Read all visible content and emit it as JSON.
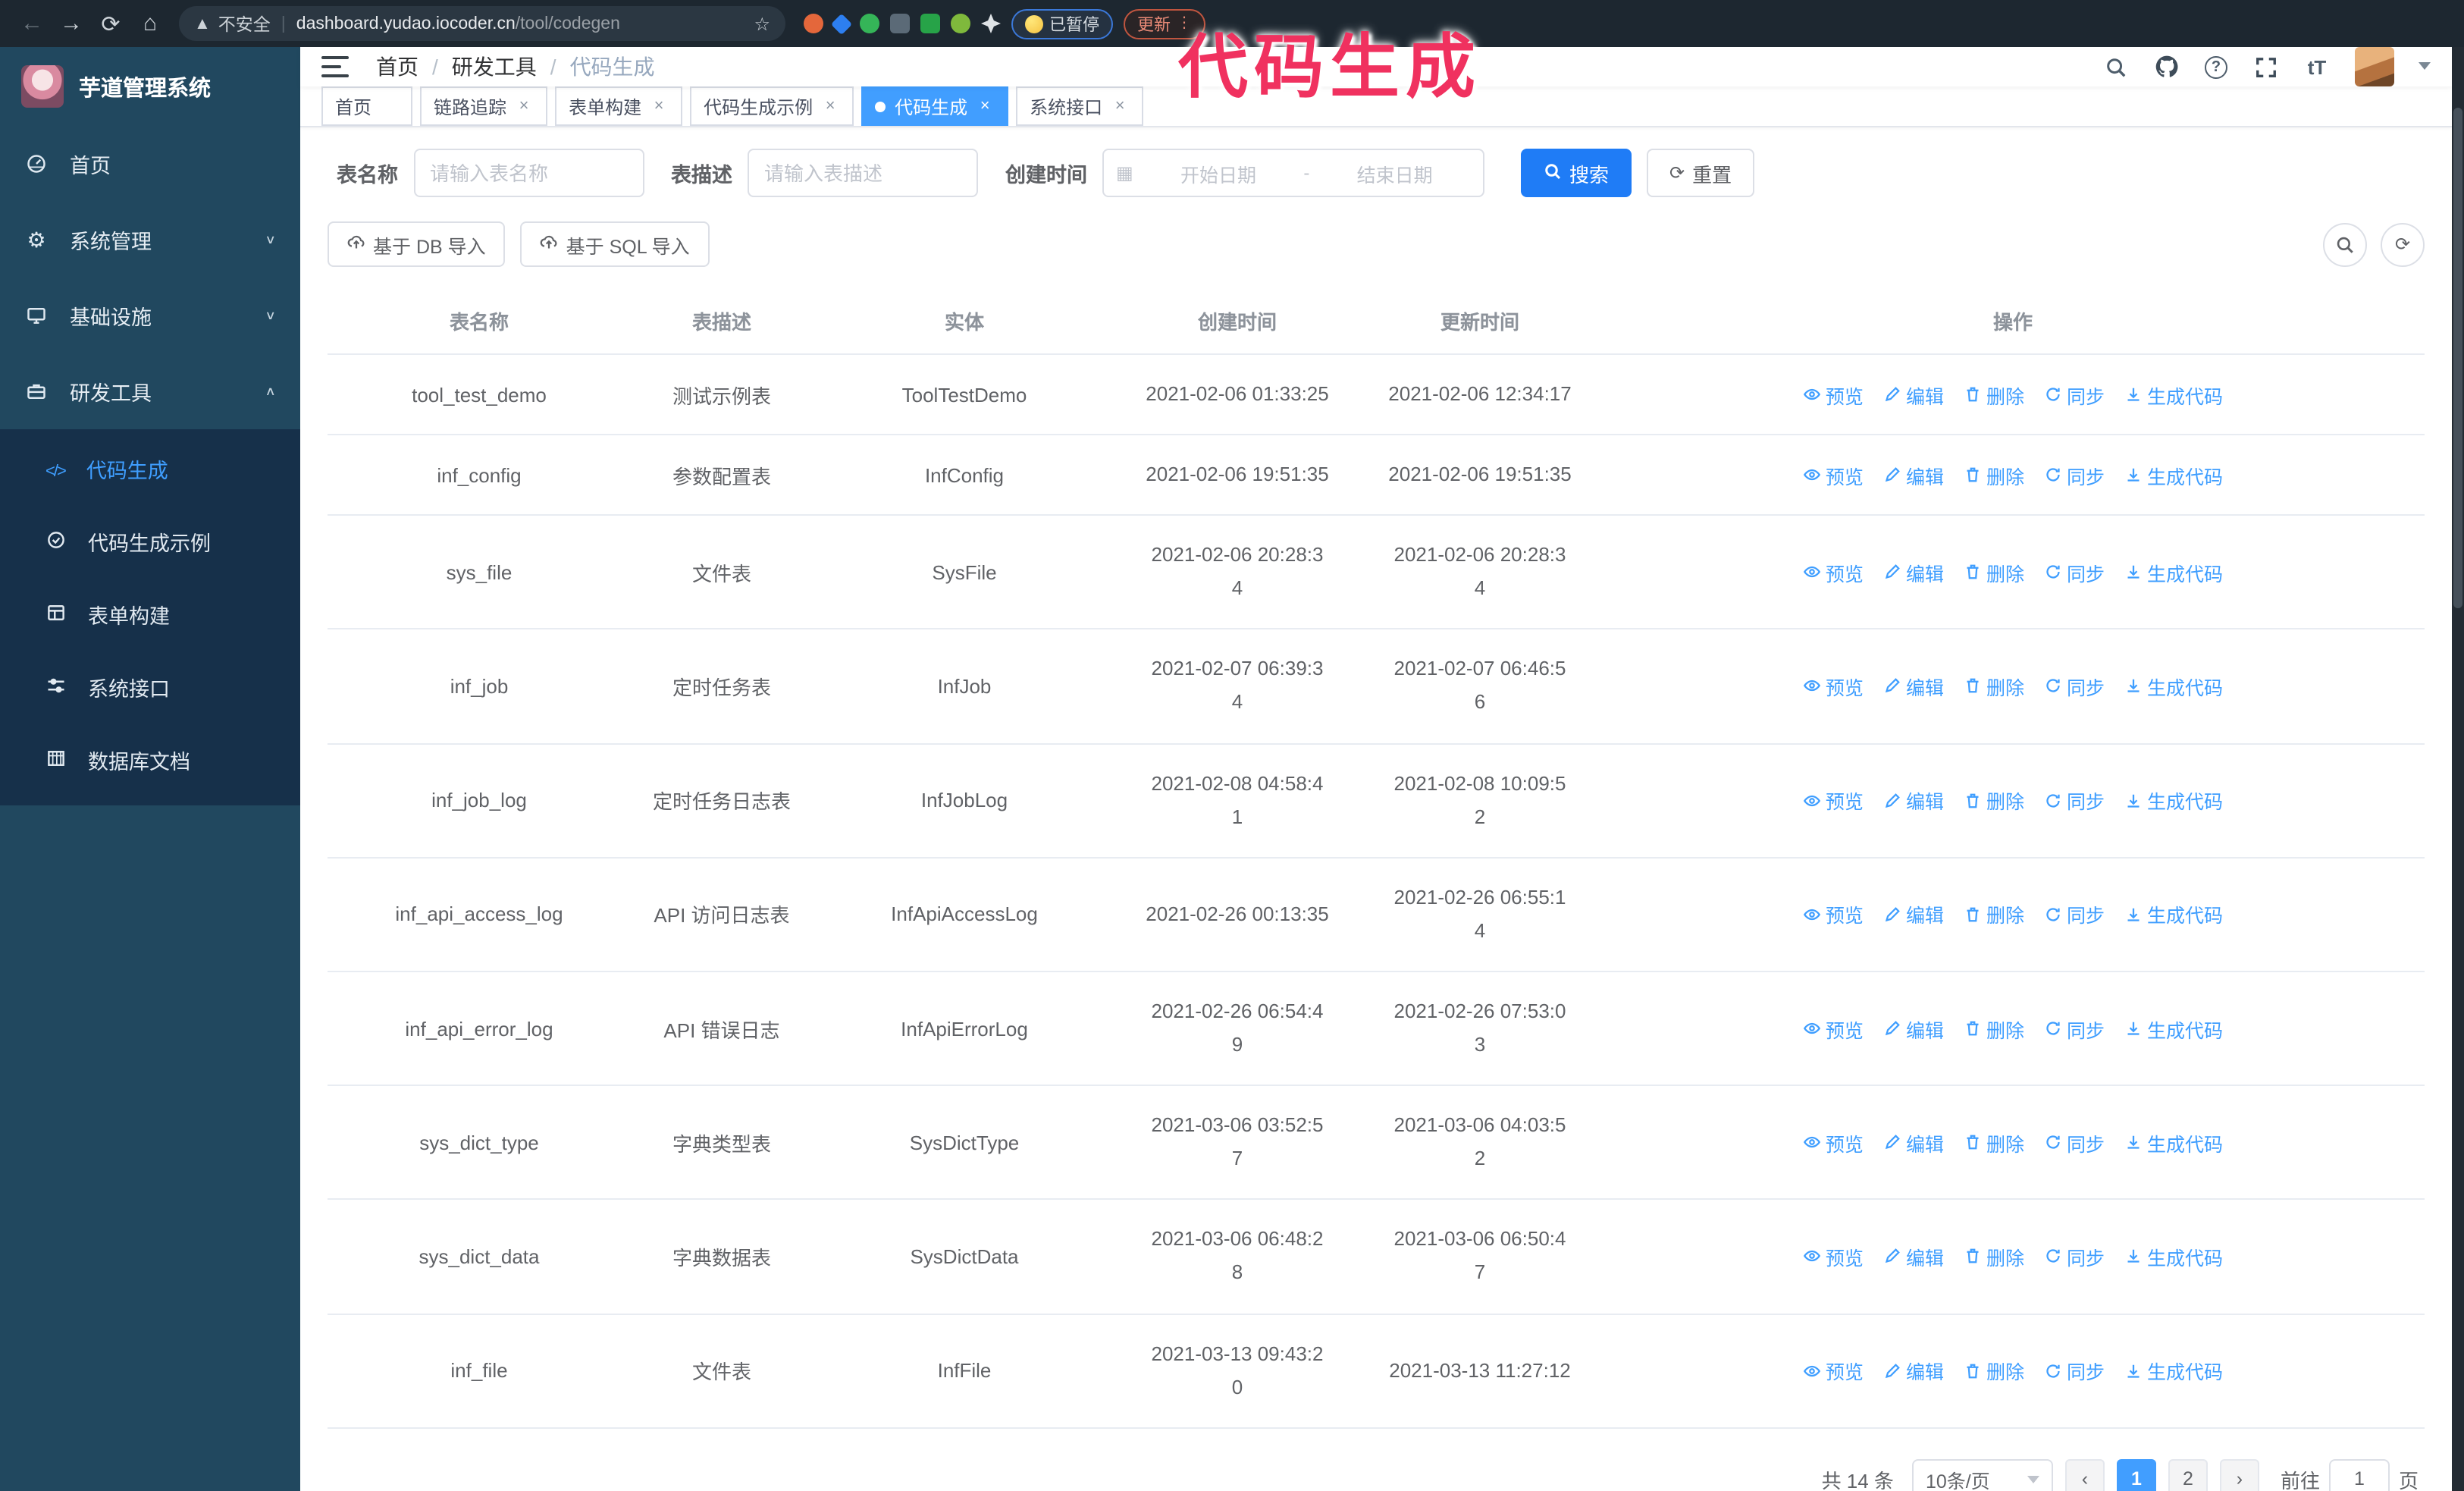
{
  "browser": {
    "insecure_label": "不安全",
    "url_host": "dashboard.yudao.iocoder.cn",
    "url_path": "/tool/codegen",
    "paused_badge": "已暂停",
    "update_button": "更新"
  },
  "annotation": {
    "text": "代码生成",
    "color": "#f0315f"
  },
  "sidebar": {
    "logo_title": "芋道管理系统",
    "items": [
      {
        "label": "首页",
        "icon": "dashboard-icon",
        "chevron": ""
      },
      {
        "label": "系统管理",
        "icon": "gear-icon",
        "chevron": "down"
      },
      {
        "label": "基础设施",
        "icon": "monitor-icon",
        "chevron": "down"
      },
      {
        "label": "研发工具",
        "icon": "toolbox-icon",
        "chevron": "up"
      }
    ],
    "subitems": [
      {
        "label": "代码生成",
        "icon": "code-icon",
        "active": true
      },
      {
        "label": "代码生成示例",
        "icon": "badge-check-icon"
      },
      {
        "label": "表单构建",
        "icon": "form-icon"
      },
      {
        "label": "系统接口",
        "icon": "sliders-icon"
      },
      {
        "label": "数据库文档",
        "icon": "database-icon"
      }
    ]
  },
  "header": {
    "breadcrumb": [
      {
        "label": "首页"
      },
      {
        "label": "研发工具"
      },
      {
        "label": "代码生成",
        "last": true
      }
    ]
  },
  "tags": [
    {
      "label": "首页",
      "closable": false
    },
    {
      "label": "链路追踪",
      "closable": true
    },
    {
      "label": "表单构建",
      "closable": true
    },
    {
      "label": "代码生成示例",
      "closable": true
    },
    {
      "label": "代码生成",
      "closable": true,
      "active": true
    },
    {
      "label": "系统接口",
      "closable": true
    }
  ],
  "filters": {
    "name_label": "表名称",
    "name_placeholder": "请输入表名称",
    "desc_label": "表描述",
    "desc_placeholder": "请输入表描述",
    "time_label": "创建时间",
    "start_placeholder": "开始日期",
    "range_separator": "-",
    "end_placeholder": "结束日期",
    "search_label": "搜索",
    "reset_label": "重置"
  },
  "toolbar": {
    "db_import_label": "基于 DB 导入",
    "sql_import_label": "基于 SQL 导入"
  },
  "table": {
    "headers": [
      "表名称",
      "表描述",
      "实体",
      "创建时间",
      "更新时间",
      "操作"
    ],
    "actions": [
      {
        "label": "预览",
        "icon": "eye-icon"
      },
      {
        "label": "编辑",
        "icon": "edit-icon"
      },
      {
        "label": "删除",
        "icon": "delete-icon"
      },
      {
        "label": "同步",
        "icon": "sync-icon"
      },
      {
        "label": "生成代码",
        "icon": "download-icon"
      }
    ],
    "rows": [
      {
        "name": "tool_test_demo",
        "desc": "测试示例表",
        "entity": "ToolTestDemo",
        "created": "2021-02-06 01:33:25",
        "updated": "2021-02-06 12:34:17"
      },
      {
        "name": "inf_config",
        "desc": "参数配置表",
        "entity": "InfConfig",
        "created": "2021-02-06 19:51:35",
        "updated": "2021-02-06 19:51:35"
      },
      {
        "name": "sys_file",
        "desc": "文件表",
        "entity": "SysFile",
        "created": "2021-02-06 20:28:3\n4",
        "updated": "2021-02-06 20:28:3\n4"
      },
      {
        "name": "inf_job",
        "desc": "定时任务表",
        "entity": "InfJob",
        "created": "2021-02-07 06:39:3\n4",
        "updated": "2021-02-07 06:46:5\n6"
      },
      {
        "name": "inf_job_log",
        "desc": "定时任务日志表",
        "entity": "InfJobLog",
        "created": "2021-02-08 04:58:4\n1",
        "updated": "2021-02-08 10:09:5\n2"
      },
      {
        "name": "inf_api_access_log",
        "desc": "API 访问日志表",
        "entity": "InfApiAccessLog",
        "created": "2021-02-26 00:13:35",
        "updated": "2021-02-26 06:55:1\n4"
      },
      {
        "name": "inf_api_error_log",
        "desc": "API 错误日志",
        "entity": "InfApiErrorLog",
        "created": "2021-02-26 06:54:4\n9",
        "updated": "2021-02-26 07:53:0\n3"
      },
      {
        "name": "sys_dict_type",
        "desc": "字典类型表",
        "entity": "SysDictType",
        "created": "2021-03-06 03:52:5\n7",
        "updated": "2021-03-06 04:03:5\n2"
      },
      {
        "name": "sys_dict_data",
        "desc": "字典数据表",
        "entity": "SysDictData",
        "created": "2021-03-06 06:48:2\n8",
        "updated": "2021-03-06 06:50:4\n7"
      },
      {
        "name": "inf_file",
        "desc": "文件表",
        "entity": "InfFile",
        "created": "2021-03-13 09:43:2\n0",
        "updated": "2021-03-13 11:27:12"
      }
    ]
  },
  "pagination": {
    "total": "共 14 条",
    "page_size": "10条/页",
    "pages": [
      {
        "label": "1",
        "active": true
      },
      {
        "label": "2"
      }
    ],
    "goto_label": "前往",
    "goto_value": "1",
    "goto_suffix": "页"
  }
}
